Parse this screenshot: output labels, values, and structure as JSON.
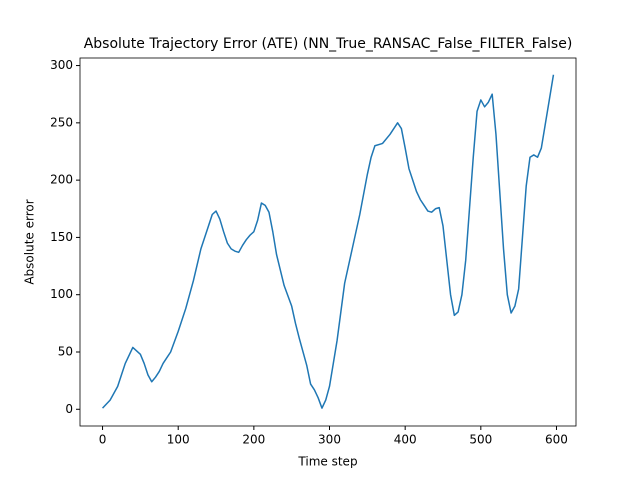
{
  "chart_data": {
    "type": "line",
    "title": "Absolute Trajectory Error (ATE) (NN_True_RANSAC_False_FILTER_False)",
    "x_label": "Time step",
    "y_label": "Absolute error",
    "series": [
      {
        "name": "ATE",
        "color": "#1f77b4",
        "x": [
          0,
          10,
          20,
          25,
          30,
          40,
          50,
          55,
          60,
          65,
          70,
          75,
          80,
          85,
          90,
          100,
          110,
          120,
          130,
          140,
          145,
          150,
          155,
          160,
          165,
          170,
          175,
          180,
          185,
          190,
          195,
          200,
          205,
          210,
          215,
          220,
          225,
          230,
          240,
          250,
          255,
          260,
          265,
          270,
          275,
          280,
          285,
          290,
          295,
          300,
          305,
          310,
          315,
          320,
          330,
          340,
          350,
          355,
          360,
          370,
          380,
          385,
          390,
          395,
          400,
          405,
          410,
          415,
          420,
          425,
          430,
          435,
          440,
          445,
          450,
          455,
          460,
          465,
          470,
          475,
          480,
          485,
          490,
          495,
          500,
          505,
          510,
          515,
          520,
          525,
          530,
          535,
          540,
          545,
          550,
          555,
          560,
          565,
          570,
          575,
          580,
          585,
          590,
          596
        ],
        "values": [
          1,
          8,
          20,
          30,
          40,
          54,
          48,
          40,
          30,
          24,
          28,
          33,
          40,
          45,
          50,
          68,
          88,
          112,
          140,
          160,
          170,
          173,
          166,
          155,
          145,
          140,
          138,
          137,
          143,
          148,
          152,
          155,
          165,
          180,
          178,
          172,
          155,
          135,
          108,
          90,
          75,
          62,
          50,
          38,
          22,
          17,
          10,
          1,
          8,
          20,
          40,
          60,
          85,
          110,
          140,
          170,
          205,
          220,
          230,
          232,
          240,
          245,
          250,
          245,
          228,
          210,
          200,
          190,
          183,
          178,
          173,
          172,
          175,
          176,
          160,
          130,
          100,
          82,
          85,
          100,
          130,
          175,
          220,
          260,
          270,
          264,
          268,
          275,
          240,
          190,
          140,
          100,
          84,
          90,
          105,
          150,
          195,
          220,
          222,
          220,
          228,
          248,
          268,
          292
        ]
      }
    ],
    "xlim": [
      -29.8,
      625.8
    ],
    "ylim": [
      -14.6,
      306.6
    ],
    "xticks": [
      0,
      100,
      200,
      300,
      400,
      500,
      600
    ],
    "yticks": [
      0,
      50,
      100,
      150,
      200,
      250,
      300
    ],
    "grid": false
  }
}
